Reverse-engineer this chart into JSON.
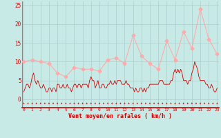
{
  "xlabel": "Vent moyen/en rafales ( km/h )",
  "bg_color": "#c8eae6",
  "grid_color": "#aacccc",
  "xlim": [
    -0.2,
    23.2
  ],
  "ylim": [
    0,
    26
  ],
  "yticks": [
    0,
    5,
    10,
    15,
    20,
    25
  ],
  "xticks": [
    0,
    1,
    2,
    3,
    4,
    5,
    6,
    7,
    8,
    9,
    10,
    11,
    12,
    13,
    14,
    15,
    16,
    17,
    18,
    19,
    20,
    21,
    22,
    23
  ],
  "line1_color": "#cc0000",
  "line2_color": "#ffaaaa",
  "line1_x": [
    0.0,
    0.17,
    0.33,
    0.5,
    0.67,
    0.83,
    1.0,
    1.17,
    1.33,
    1.5,
    1.67,
    1.83,
    2.0,
    2.17,
    2.33,
    2.5,
    2.67,
    2.83,
    3.0,
    3.17,
    3.33,
    3.5,
    3.67,
    3.83,
    4.0,
    4.17,
    4.33,
    4.5,
    4.67,
    4.83,
    5.0,
    5.17,
    5.33,
    5.5,
    5.67,
    5.83,
    6.0,
    6.17,
    6.33,
    6.5,
    6.67,
    6.83,
    7.0,
    7.17,
    7.33,
    7.5,
    7.67,
    7.83,
    8.0,
    8.17,
    8.33,
    8.5,
    8.67,
    8.83,
    9.0,
    9.17,
    9.33,
    9.5,
    9.67,
    9.83,
    10.0,
    10.17,
    10.33,
    10.5,
    10.67,
    10.83,
    11.0,
    11.17,
    11.33,
    11.5,
    11.67,
    11.83,
    12.0,
    12.17,
    12.33,
    12.5,
    12.67,
    12.83,
    13.0,
    13.17,
    13.33,
    13.5,
    13.67,
    13.83,
    14.0,
    14.17,
    14.33,
    14.5,
    14.67,
    14.83,
    15.0,
    15.17,
    15.33,
    15.5,
    15.67,
    15.83,
    16.0,
    16.17,
    16.33,
    16.5,
    16.67,
    16.83,
    17.0,
    17.17,
    17.33,
    17.5,
    17.67,
    17.83,
    18.0,
    18.17,
    18.33,
    18.5,
    18.67,
    18.83,
    19.0,
    19.17,
    19.33,
    19.5,
    19.67,
    19.83,
    20.0,
    20.17,
    20.33,
    20.5,
    20.67,
    20.83,
    21.0,
    21.17,
    21.33,
    21.5,
    21.67,
    21.83,
    22.0,
    22.17,
    22.33,
    22.5,
    22.67,
    22.83,
    23.0
  ],
  "line1_y": [
    2,
    3,
    4,
    4,
    3,
    4,
    6,
    7,
    5,
    4,
    5,
    4,
    3,
    3,
    4,
    3,
    2,
    2,
    3,
    3,
    2,
    3,
    3,
    2,
    4,
    4,
    3,
    3,
    4,
    3,
    3,
    4,
    3,
    3,
    2,
    3,
    4,
    4,
    3,
    4,
    4,
    3,
    4,
    4,
    4,
    4,
    3,
    5,
    6,
    5,
    5,
    3,
    4,
    5,
    3,
    3,
    4,
    4,
    3,
    3,
    4,
    4,
    5,
    4,
    4,
    5,
    4,
    5,
    5,
    5,
    4,
    4,
    4,
    5,
    4,
    4,
    3,
    3,
    3,
    2,
    3,
    2,
    2,
    3,
    3,
    2,
    3,
    2,
    3,
    3,
    4,
    4,
    4,
    4,
    4,
    4,
    4,
    5,
    5,
    5,
    4,
    4,
    4,
    4,
    4,
    5,
    5,
    7,
    8,
    7,
    8,
    7,
    8,
    7,
    5,
    5,
    5,
    4,
    5,
    5,
    7,
    8,
    10,
    9,
    8,
    6,
    5,
    5,
    5,
    5,
    4,
    4,
    3,
    3,
    4,
    3,
    2,
    2,
    3
  ],
  "line2_x": [
    0,
    1,
    2,
    3,
    4,
    5,
    6,
    7,
    8,
    9,
    10,
    11,
    12,
    13,
    14,
    15,
    16,
    17,
    18,
    19,
    20,
    21,
    22,
    23
  ],
  "line2_y": [
    10,
    10.5,
    10,
    9.5,
    7,
    6,
    8.5,
    8,
    8,
    7.5,
    10.5,
    11,
    9.5,
    17,
    11.5,
    9.5,
    8,
    15.5,
    10.5,
    18,
    13.5,
    24,
    16,
    12
  ]
}
